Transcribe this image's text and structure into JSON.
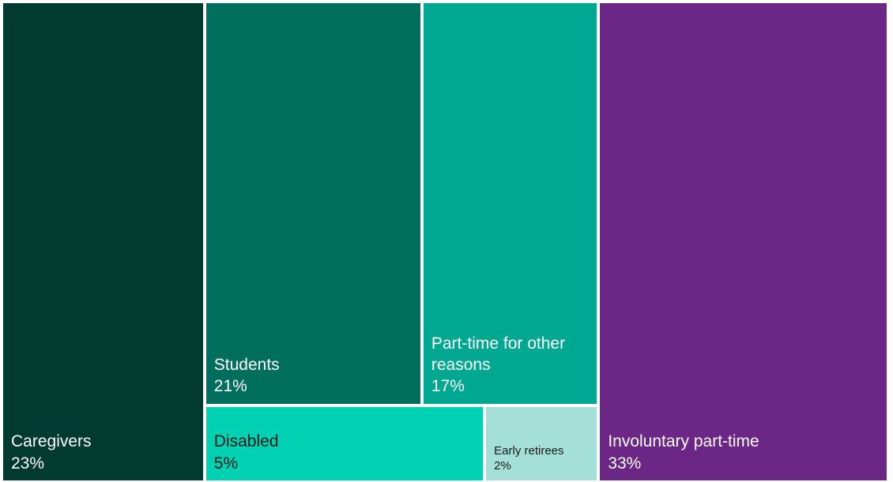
{
  "chart_data": {
    "type": "treemap",
    "items": [
      {
        "label": "Caregivers",
        "value": 23,
        "value_text": "23%",
        "color": "#013a2e",
        "text_color": "#ffffff"
      },
      {
        "label": "Students",
        "value": 21,
        "value_text": "21%",
        "color": "#006e5c",
        "text_color": "#ffffff"
      },
      {
        "label": "Part-time for other reasons",
        "value": 17,
        "value_text": "17%",
        "color": "#00a892",
        "text_color": "#ffffff"
      },
      {
        "label": "Disabled",
        "value": 5,
        "value_text": "5%",
        "color": "#00d1b3",
        "text_color": "#1a1a1a"
      },
      {
        "label": "Early retirees",
        "value": 2,
        "value_text": "2%",
        "color": "#a4e0d8",
        "text_color": "#1a1a1a"
      },
      {
        "label": "Involuntary part-time",
        "value": 33,
        "value_text": "33%",
        "color": "#6c2685",
        "text_color": "#ffffff"
      }
    ]
  }
}
